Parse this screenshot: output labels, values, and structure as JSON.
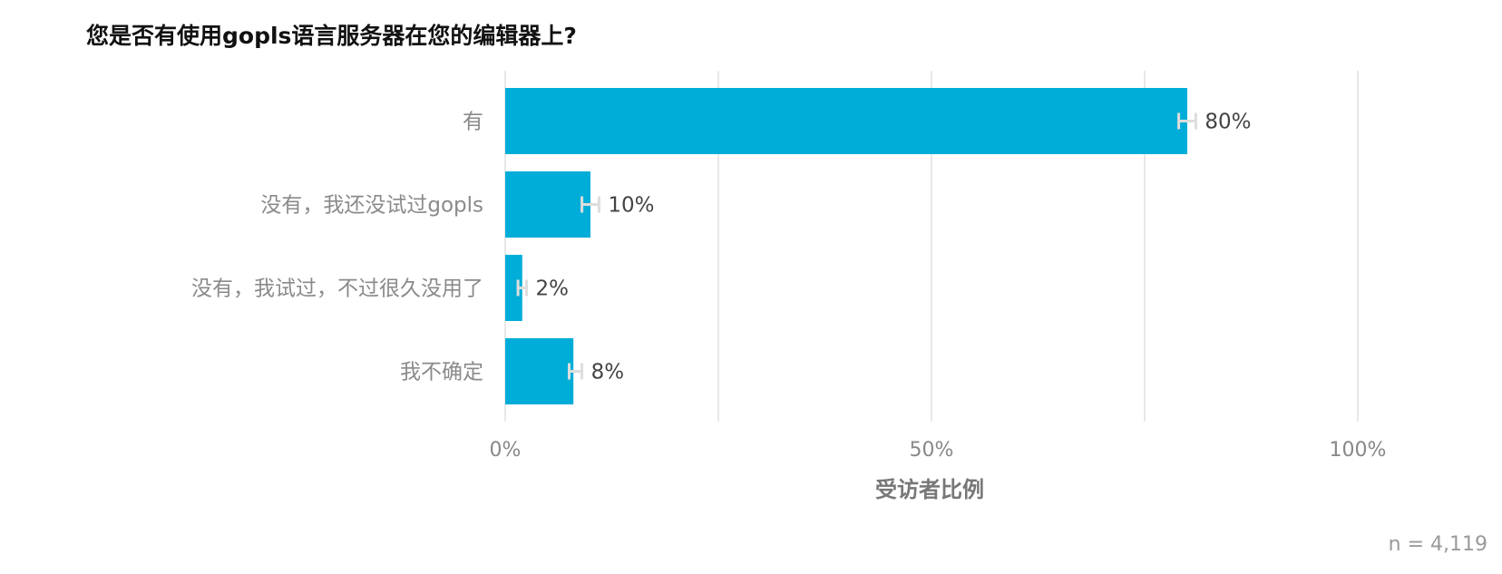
{
  "chart_data": {
    "type": "bar",
    "orientation": "horizontal",
    "title": "您是否有使用gopls语言服务器在您的编辑器上?",
    "categories": [
      "有",
      "没有，我还没试过gopls",
      "没有，我试过，不过很久没用了",
      "我不确定"
    ],
    "values": [
      80,
      10,
      2,
      8
    ],
    "value_labels": [
      "80%",
      "10%",
      "2%",
      "8%"
    ],
    "error_low": [
      79,
      9,
      1.5,
      7.5
    ],
    "error_high": [
      81,
      11,
      2.5,
      9
    ],
    "xlabel": "受访者比例",
    "ylabel": "",
    "xlim": [
      0,
      100
    ],
    "xticks": [
      0,
      50,
      100
    ],
    "xtick_labels": [
      "0%",
      "50%",
      "100%"
    ],
    "gridlines_at": [
      0,
      25,
      50,
      75,
      100
    ],
    "grid": true,
    "bar_color": "#00ADD8",
    "errorbar_color": "#DDDDDD",
    "sample_size_label": "n =  4,119"
  }
}
